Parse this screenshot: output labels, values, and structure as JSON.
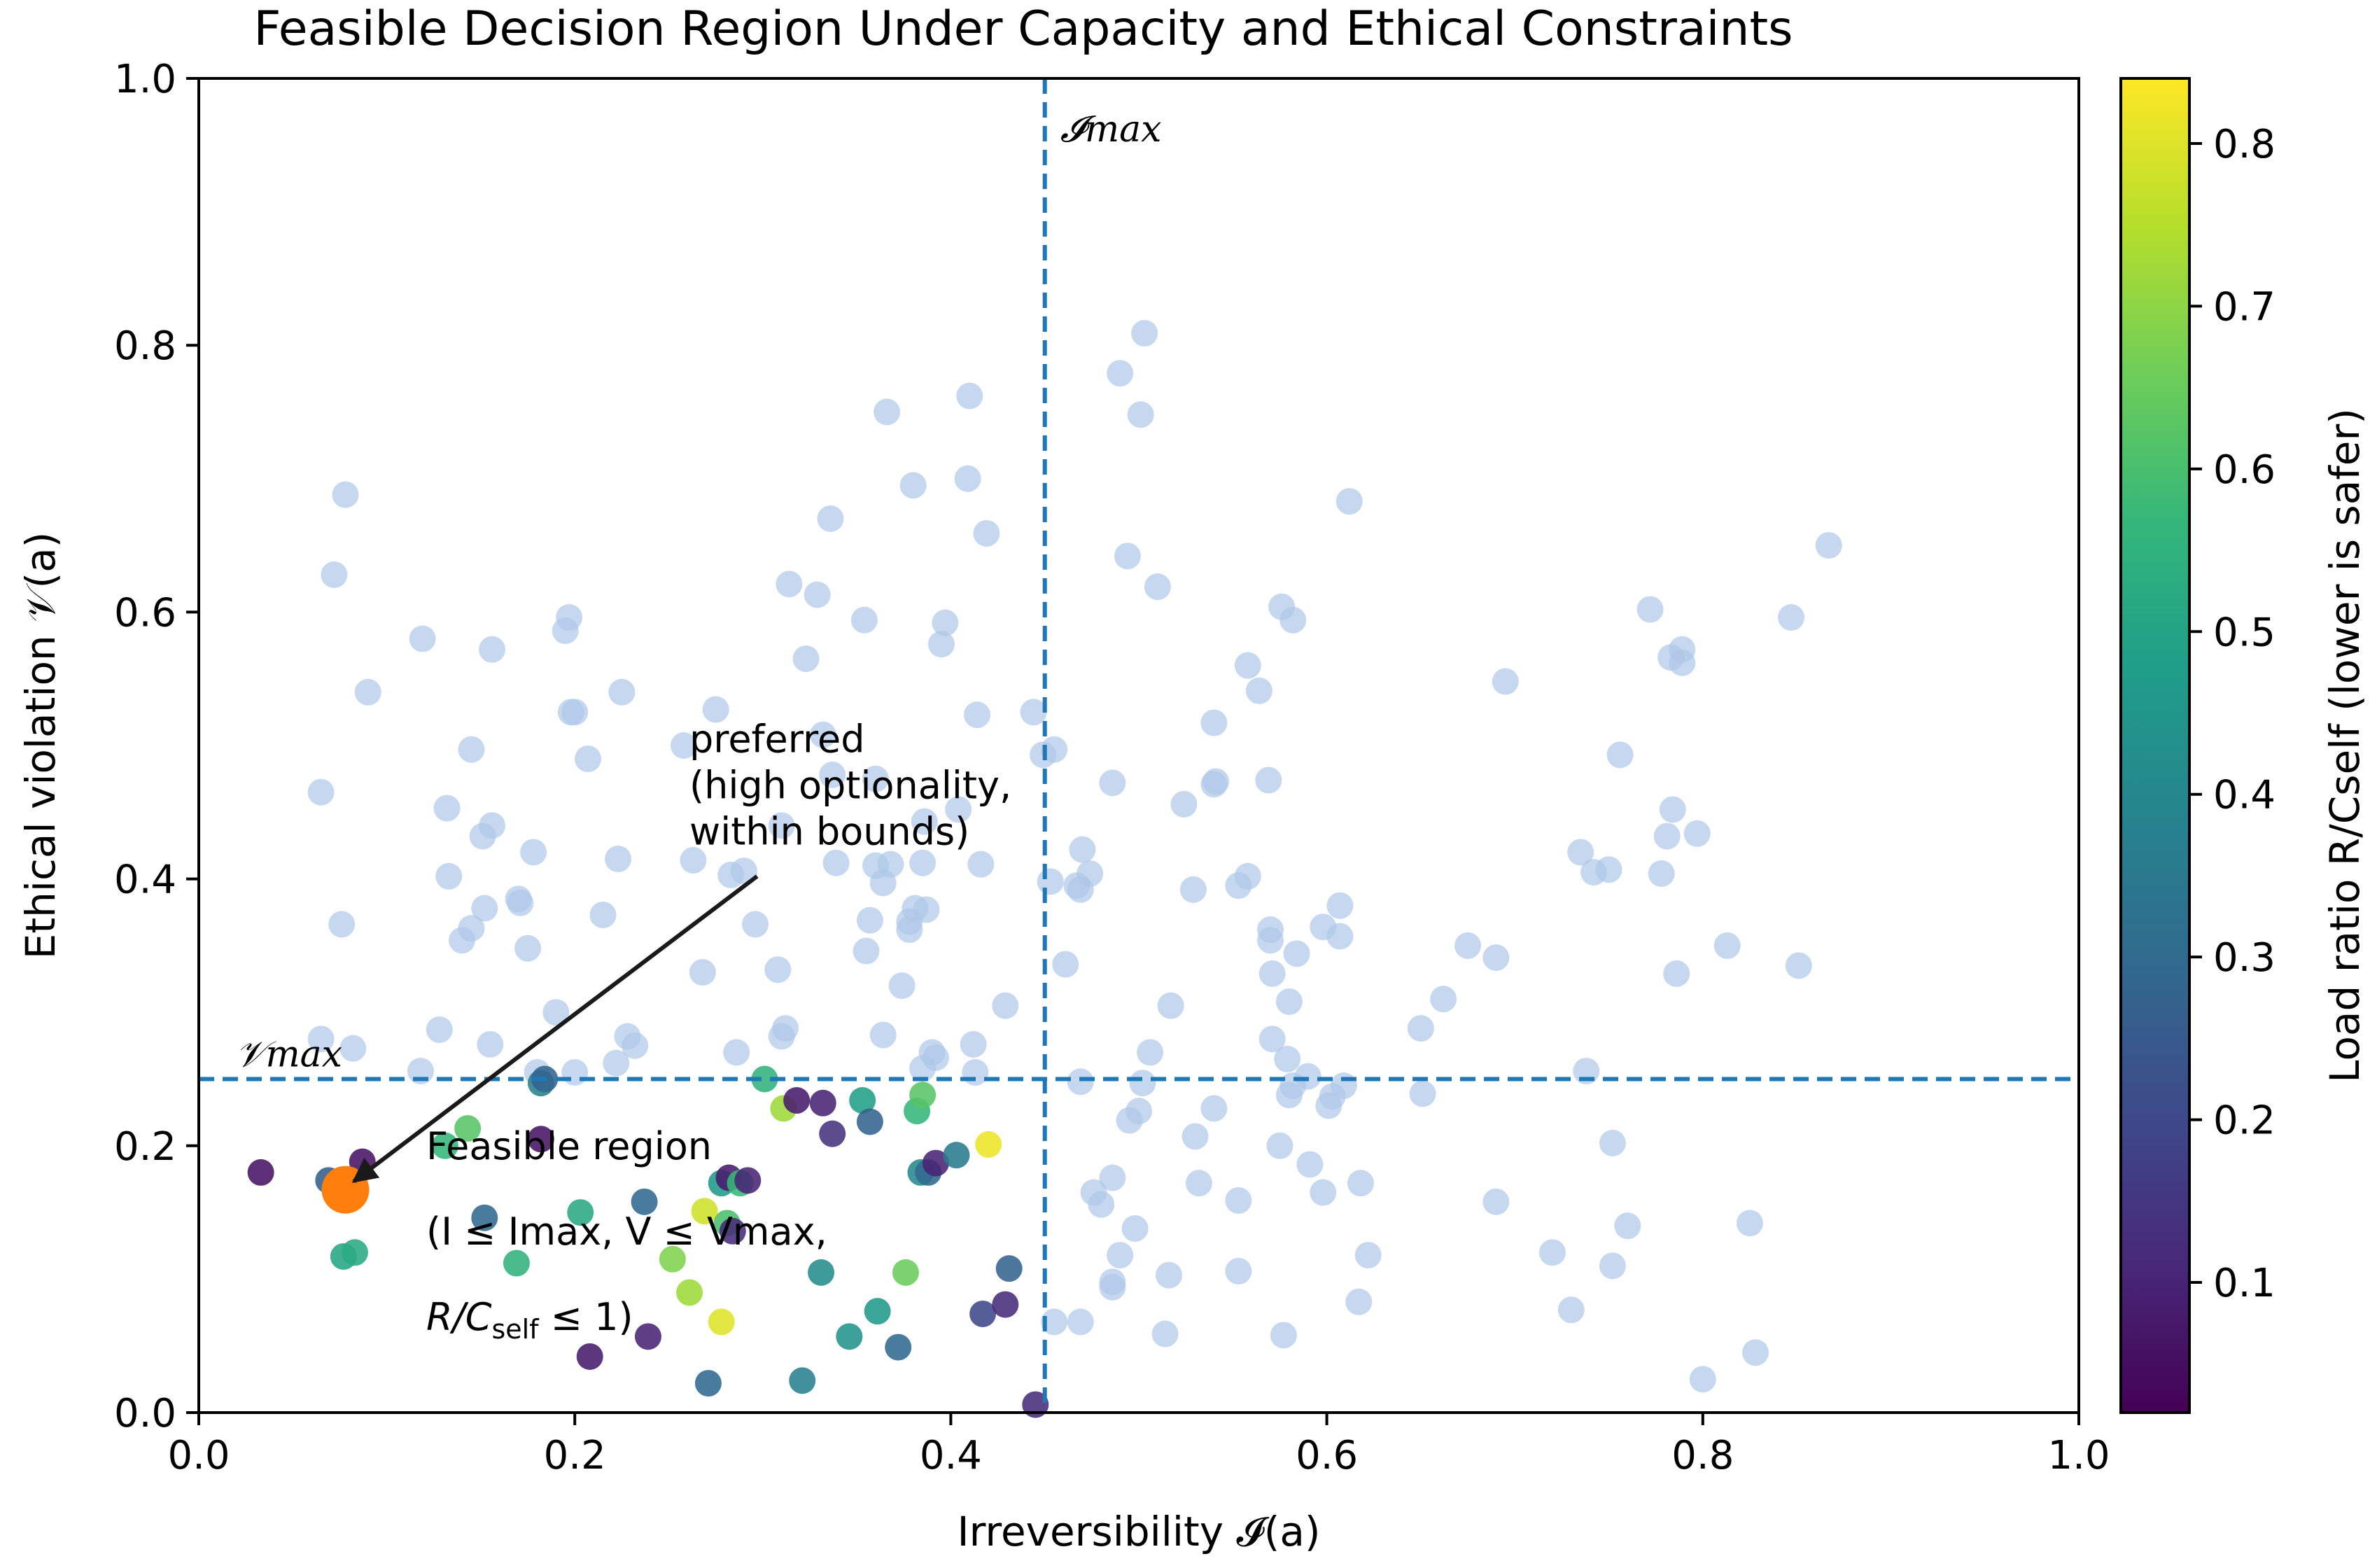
{
  "chart_data": {
    "type": "scatter",
    "title": "Feasible Decision Region Under Capacity and Ethical Constraints",
    "xlabel": "Irreversibility 𝓘(a)",
    "ylabel": "Ethical violation 𝒱(a)",
    "xlim": [
      0.0,
      1.0
    ],
    "ylim": [
      0.0,
      1.0
    ],
    "x_ticks": [
      "0.0",
      "0.2",
      "0.4",
      "0.6",
      "0.8",
      "1.0"
    ],
    "y_ticks": [
      "0.0",
      "0.2",
      "0.4",
      "0.6",
      "0.8",
      "1.0"
    ],
    "grid": false,
    "thresholds": {
      "I_max": 0.45,
      "V_max": 0.25,
      "I_max_label": "𝓘max",
      "V_max_label": "𝒱max"
    },
    "colorbar": {
      "label": "Load ratio R/Cself (lower is safer)",
      "range": [
        0.02,
        0.84
      ],
      "ticks": [
        "0.1",
        "0.2",
        "0.3",
        "0.4",
        "0.5",
        "0.6",
        "0.7",
        "0.8"
      ],
      "colormap": "viridis"
    },
    "colors": {
      "infeasible": "#aec7e8",
      "threshold_line": "#1f77b4",
      "preferred": "#ff7f0e",
      "annotation_arrow": "#1a1a1a"
    },
    "series": [
      {
        "name": "infeasible",
        "points": [
          [
            0.065,
            0.465
          ],
          [
            0.078,
            0.688
          ],
          [
            0.072,
            0.628
          ],
          [
            0.09,
            0.54
          ],
          [
            0.076,
            0.366
          ],
          [
            0.065,
            0.28
          ],
          [
            0.082,
            0.273
          ],
          [
            0.119,
            0.58
          ],
          [
            0.145,
            0.497
          ],
          [
            0.156,
            0.572
          ],
          [
            0.151,
            0.432
          ],
          [
            0.156,
            0.44
          ],
          [
            0.132,
            0.453
          ],
          [
            0.133,
            0.402
          ],
          [
            0.14,
            0.354
          ],
          [
            0.145,
            0.363
          ],
          [
            0.152,
            0.378
          ],
          [
            0.17,
            0.385
          ],
          [
            0.171,
            0.382
          ],
          [
            0.178,
            0.42
          ],
          [
            0.175,
            0.348
          ],
          [
            0.155,
            0.276
          ],
          [
            0.128,
            0.287
          ],
          [
            0.118,
            0.256
          ],
          [
            0.18,
            0.255
          ],
          [
            0.195,
            0.586
          ],
          [
            0.197,
            0.596
          ],
          [
            0.198,
            0.525
          ],
          [
            0.2,
            0.525
          ],
          [
            0.207,
            0.49
          ],
          [
            0.215,
            0.373
          ],
          [
            0.223,
            0.415
          ],
          [
            0.225,
            0.54
          ],
          [
            0.19,
            0.3
          ],
          [
            0.2,
            0.255
          ],
          [
            0.228,
            0.282
          ],
          [
            0.232,
            0.275
          ],
          [
            0.222,
            0.262
          ],
          [
            0.258,
            0.5
          ],
          [
            0.275,
            0.527
          ],
          [
            0.263,
            0.414
          ],
          [
            0.283,
            0.403
          ],
          [
            0.268,
            0.33
          ],
          [
            0.286,
            0.27
          ],
          [
            0.296,
            0.366
          ],
          [
            0.29,
            0.406
          ],
          [
            0.308,
            0.332
          ],
          [
            0.31,
            0.282
          ],
          [
            0.312,
            0.288
          ],
          [
            0.314,
            0.621
          ],
          [
            0.323,
            0.565
          ],
          [
            0.329,
            0.613
          ],
          [
            0.336,
            0.67
          ],
          [
            0.332,
            0.508
          ],
          [
            0.31,
            0.44
          ],
          [
            0.337,
            0.478
          ],
          [
            0.339,
            0.412
          ],
          [
            0.36,
            0.475
          ],
          [
            0.354,
            0.594
          ],
          [
            0.366,
            0.75
          ],
          [
            0.38,
            0.695
          ],
          [
            0.357,
            0.369
          ],
          [
            0.36,
            0.41
          ],
          [
            0.364,
            0.397
          ],
          [
            0.364,
            0.283
          ],
          [
            0.368,
            0.411
          ],
          [
            0.374,
            0.32
          ],
          [
            0.378,
            0.362
          ],
          [
            0.378,
            0.368
          ],
          [
            0.381,
            0.378
          ],
          [
            0.387,
            0.377
          ],
          [
            0.385,
            0.412
          ],
          [
            0.386,
            0.443
          ],
          [
            0.39,
            0.27
          ],
          [
            0.392,
            0.266
          ],
          [
            0.395,
            0.576
          ],
          [
            0.397,
            0.592
          ],
          [
            0.409,
            0.7
          ],
          [
            0.41,
            0.762
          ],
          [
            0.414,
            0.523
          ],
          [
            0.416,
            0.411
          ],
          [
            0.419,
            0.659
          ],
          [
            0.412,
            0.276
          ],
          [
            0.404,
            0.452
          ],
          [
            0.355,
            0.346
          ],
          [
            0.385,
            0.258
          ],
          [
            0.413,
            0.255
          ],
          [
            0.429,
            0.305
          ],
          [
            0.444,
            0.525
          ],
          [
            0.449,
            0.493
          ],
          [
            0.455,
            0.497
          ],
          [
            0.453,
            0.398
          ],
          [
            0.461,
            0.336
          ],
          [
            0.467,
            0.395
          ],
          [
            0.469,
            0.392
          ],
          [
            0.47,
            0.422
          ],
          [
            0.474,
            0.404
          ],
          [
            0.469,
            0.248
          ],
          [
            0.476,
            0.165
          ],
          [
            0.48,
            0.156
          ],
          [
            0.486,
            0.472
          ],
          [
            0.486,
            0.176
          ],
          [
            0.486,
            0.094
          ],
          [
            0.486,
            0.098
          ],
          [
            0.49,
            0.118
          ],
          [
            0.49,
            0.779
          ],
          [
            0.494,
            0.642
          ],
          [
            0.501,
            0.748
          ],
          [
            0.503,
            0.809
          ],
          [
            0.502,
            0.247
          ],
          [
            0.495,
            0.219
          ],
          [
            0.5,
            0.226
          ],
          [
            0.498,
            0.138
          ],
          [
            0.506,
            0.27
          ],
          [
            0.51,
            0.619
          ],
          [
            0.517,
            0.305
          ],
          [
            0.516,
            0.103
          ],
          [
            0.514,
            0.059
          ],
          [
            0.524,
            0.456
          ],
          [
            0.529,
            0.392
          ],
          [
            0.53,
            0.207
          ],
          [
            0.532,
            0.172
          ],
          [
            0.54,
            0.517
          ],
          [
            0.54,
            0.471
          ],
          [
            0.541,
            0.473
          ],
          [
            0.54,
            0.228
          ],
          [
            0.553,
            0.395
          ],
          [
            0.553,
            0.159
          ],
          [
            0.553,
            0.106
          ],
          [
            0.558,
            0.56
          ],
          [
            0.558,
            0.402
          ],
          [
            0.564,
            0.541
          ],
          [
            0.569,
            0.474
          ],
          [
            0.57,
            0.362
          ],
          [
            0.57,
            0.354
          ],
          [
            0.571,
            0.329
          ],
          [
            0.571,
            0.28
          ],
          [
            0.575,
            0.2
          ],
          [
            0.576,
            0.604
          ],
          [
            0.579,
            0.265
          ],
          [
            0.58,
            0.308
          ],
          [
            0.58,
            0.238
          ],
          [
            0.582,
            0.594
          ],
          [
            0.582,
            0.245
          ],
          [
            0.584,
            0.344
          ],
          [
            0.59,
            0.252
          ],
          [
            0.591,
            0.186
          ],
          [
            0.598,
            0.364
          ],
          [
            0.598,
            0.165
          ],
          [
            0.601,
            0.23
          ],
          [
            0.603,
            0.237
          ],
          [
            0.607,
            0.38
          ],
          [
            0.607,
            0.357
          ],
          [
            0.609,
            0.245
          ],
          [
            0.612,
            0.683
          ],
          [
            0.617,
            0.083
          ],
          [
            0.618,
            0.172
          ],
          [
            0.622,
            0.118
          ],
          [
            0.577,
            0.058
          ],
          [
            0.65,
            0.288
          ],
          [
            0.651,
            0.239
          ],
          [
            0.662,
            0.31
          ],
          [
            0.675,
            0.35
          ],
          [
            0.69,
            0.341
          ],
          [
            0.695,
            0.548
          ],
          [
            0.69,
            0.158
          ],
          [
            0.73,
            0.077
          ],
          [
            0.72,
            0.12
          ],
          [
            0.735,
            0.42
          ],
          [
            0.742,
            0.405
          ],
          [
            0.738,
            0.256
          ],
          [
            0.75,
            0.407
          ],
          [
            0.752,
            0.202
          ],
          [
            0.752,
            0.11
          ],
          [
            0.756,
            0.493
          ],
          [
            0.76,
            0.14
          ],
          [
            0.772,
            0.602
          ],
          [
            0.778,
            0.404
          ],
          [
            0.781,
            0.432
          ],
          [
            0.783,
            0.566
          ],
          [
            0.784,
            0.452
          ],
          [
            0.786,
            0.329
          ],
          [
            0.789,
            0.572
          ],
          [
            0.789,
            0.562
          ],
          [
            0.797,
            0.434
          ],
          [
            0.8,
            0.025
          ],
          [
            0.813,
            0.35
          ],
          [
            0.825,
            0.142
          ],
          [
            0.828,
            0.045
          ],
          [
            0.847,
            0.596
          ],
          [
            0.851,
            0.335
          ],
          [
            0.867,
            0.65
          ],
          [
            0.455,
            0.068
          ],
          [
            0.469,
            0.068
          ]
        ]
      },
      {
        "name": "feasible",
        "points": [
          [
            0.033,
            0.18,
            0.06
          ],
          [
            0.069,
            0.174,
            0.26
          ],
          [
            0.077,
            0.117,
            0.5
          ],
          [
            0.083,
            0.12,
            0.52
          ],
          [
            0.087,
            0.188,
            0.06
          ],
          [
            0.131,
            0.2,
            0.56
          ],
          [
            0.143,
            0.213,
            0.62
          ],
          [
            0.152,
            0.146,
            0.3
          ],
          [
            0.169,
            0.112,
            0.55
          ],
          [
            0.182,
            0.205,
            0.06
          ],
          [
            0.182,
            0.247,
            0.38
          ],
          [
            0.184,
            0.25,
            0.28
          ],
          [
            0.203,
            0.15,
            0.52
          ],
          [
            0.208,
            0.042,
            0.08
          ],
          [
            0.237,
            0.158,
            0.3
          ],
          [
            0.239,
            0.057,
            0.1
          ],
          [
            0.252,
            0.115,
            0.68
          ],
          [
            0.261,
            0.09,
            0.72
          ],
          [
            0.269,
            0.151,
            0.78
          ],
          [
            0.271,
            0.022,
            0.3
          ],
          [
            0.278,
            0.068,
            0.8
          ],
          [
            0.278,
            0.172,
            0.46
          ],
          [
            0.281,
            0.142,
            0.6
          ],
          [
            0.282,
            0.176,
            0.08
          ],
          [
            0.284,
            0.136,
            0.12
          ],
          [
            0.288,
            0.172,
            0.57
          ],
          [
            0.292,
            0.174,
            0.1
          ],
          [
            0.301,
            0.25,
            0.55
          ],
          [
            0.311,
            0.228,
            0.72
          ],
          [
            0.318,
            0.234,
            0.08
          ],
          [
            0.321,
            0.024,
            0.38
          ],
          [
            0.331,
            0.105,
            0.42
          ],
          [
            0.332,
            0.232,
            0.1
          ],
          [
            0.337,
            0.209,
            0.14
          ],
          [
            0.346,
            0.057,
            0.44
          ],
          [
            0.353,
            0.234,
            0.48
          ],
          [
            0.357,
            0.218,
            0.28
          ],
          [
            0.361,
            0.076,
            0.46
          ],
          [
            0.372,
            0.049,
            0.3
          ],
          [
            0.376,
            0.105,
            0.65
          ],
          [
            0.382,
            0.226,
            0.56
          ],
          [
            0.384,
            0.18,
            0.4
          ],
          [
            0.385,
            0.238,
            0.62
          ],
          [
            0.388,
            0.18,
            0.3
          ],
          [
            0.392,
            0.187,
            0.1
          ],
          [
            0.403,
            0.193,
            0.36
          ],
          [
            0.417,
            0.074,
            0.2
          ],
          [
            0.42,
            0.201,
            0.82
          ],
          [
            0.429,
            0.081,
            0.12
          ],
          [
            0.431,
            0.108,
            0.28
          ],
          [
            0.445,
            0.006,
            0.12
          ]
        ]
      },
      {
        "name": "preferred",
        "points": [
          [
            0.078,
            0.167
          ]
        ]
      }
    ],
    "annotations": {
      "preferred": [
        "preferred",
        "(high optionality,",
        "within bounds)"
      ],
      "feasible_line1": "Feasible region",
      "feasible_line2": "(I ≤ Imax, V ≤ Vmax,",
      "feasible_line3_R": "R",
      "feasible_line3_C": "/C",
      "feasible_line3_sub": "self",
      "feasible_line3_end": " ≤ 1)"
    }
  }
}
